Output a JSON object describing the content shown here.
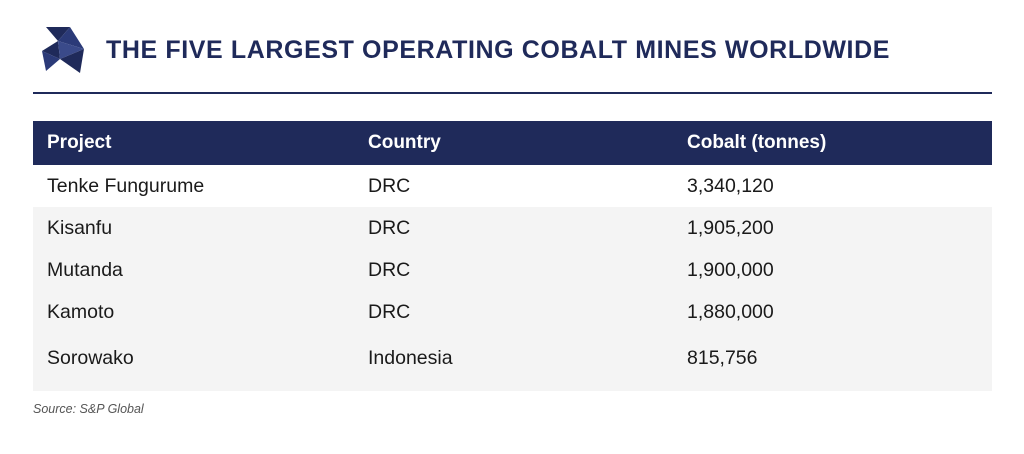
{
  "header": {
    "title": "THE FIVE LARGEST OPERATING COBALT MINES WORLDWIDE",
    "logo_icon": "triangle-mosaic-logo",
    "brand_color": "#1f2a5a"
  },
  "table": {
    "columns": [
      "Project",
      "Country",
      "Cobalt (tonnes)"
    ],
    "rows": [
      [
        "Tenke Fungurume",
        "DRC",
        "3,340,120"
      ],
      [
        "Kisanfu",
        "DRC",
        "1,905,200"
      ],
      [
        "Mutanda",
        "DRC",
        "1,900,000"
      ],
      [
        "Kamoto",
        "DRC",
        "1,880,000"
      ],
      [
        "Sorowako",
        "Indonesia",
        "815,756"
      ]
    ]
  },
  "footer": {
    "source": "Source: S&P Global"
  }
}
